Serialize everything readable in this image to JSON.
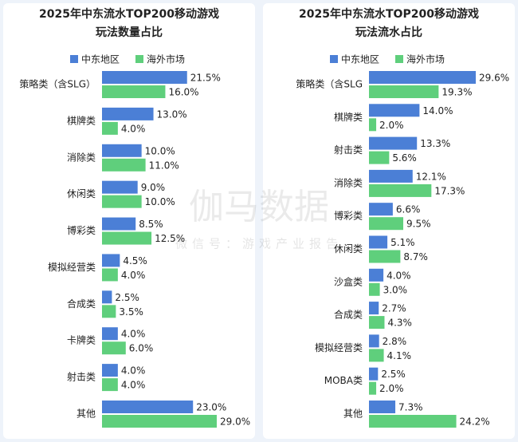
{
  "chart_data": [
    {
      "type": "bar",
      "orientation": "horizontal",
      "title": "2025年中东流水TOP200移动游戏",
      "subtitle": "玩法数量占比",
      "categories": [
        "策略类（含SLG）",
        "棋牌类",
        "消除类",
        "休闲类",
        "博彩类",
        "模拟经营类",
        "合成类",
        "卡牌类",
        "射击类",
        "其他"
      ],
      "series": [
        {
          "name": "中东地区",
          "color": "#4b7fd6",
          "values": [
            21.5,
            13.0,
            10.0,
            9.0,
            8.5,
            4.5,
            2.5,
            4.0,
            4.0,
            23.0
          ],
          "value_labels": [
            "21.5%",
            "13.0%",
            "10.0%",
            "9.0%",
            "8.5%",
            "4.5%",
            "2.5%",
            "4.0%",
            "4.0%",
            "23.0%"
          ]
        },
        {
          "name": "海外市场",
          "color": "#5fcf7c",
          "values": [
            16.0,
            4.0,
            11.0,
            10.0,
            12.5,
            4.0,
            3.5,
            6.0,
            4.0,
            29.0
          ],
          "value_labels": [
            "16.0%",
            "4.0%",
            "11.0%",
            "10.0%",
            "12.5%",
            "4.0%",
            "3.5%",
            "6.0%",
            "4.0%",
            "29.0%"
          ]
        }
      ]
    },
    {
      "type": "bar",
      "orientation": "horizontal",
      "title": "2025年中东流水TOP200移动游戏",
      "subtitle": "玩法流水占比",
      "categories": [
        "策略类（含SLG",
        "棋牌类",
        "射击类",
        "消除类",
        "博彩类",
        "休闲类",
        "沙盒类",
        "合成类",
        "模拟经营类",
        "MOBA类",
        "其他"
      ],
      "series": [
        {
          "name": "中东地区",
          "color": "#4b7fd6",
          "values": [
            29.6,
            14.0,
            13.3,
            12.1,
            6.6,
            5.1,
            4.0,
            2.7,
            2.8,
            2.5,
            7.3
          ],
          "value_labels": [
            "29.6%",
            "14.0%",
            "13.3%",
            "12.1%",
            "6.6%",
            "5.1%",
            "4.0%",
            "2.7%",
            "2.8%",
            "2.5%",
            "7.3%"
          ]
        },
        {
          "name": "海外市场",
          "color": "#5fcf7c",
          "values": [
            19.3,
            2.0,
            5.6,
            17.3,
            9.5,
            8.7,
            3.0,
            4.3,
            4.1,
            2.0,
            24.2
          ],
          "value_labels": [
            "19.3%",
            "2.0%",
            "5.6%",
            "17.3%",
            "9.5%",
            "8.7%",
            "3.0%",
            "4.3%",
            "4.1%",
            "2.0%",
            "24.2%"
          ]
        }
      ]
    }
  ],
  "watermark": {
    "title": "伽马数据",
    "subtitle": "微信号：游戏产业报告"
  }
}
